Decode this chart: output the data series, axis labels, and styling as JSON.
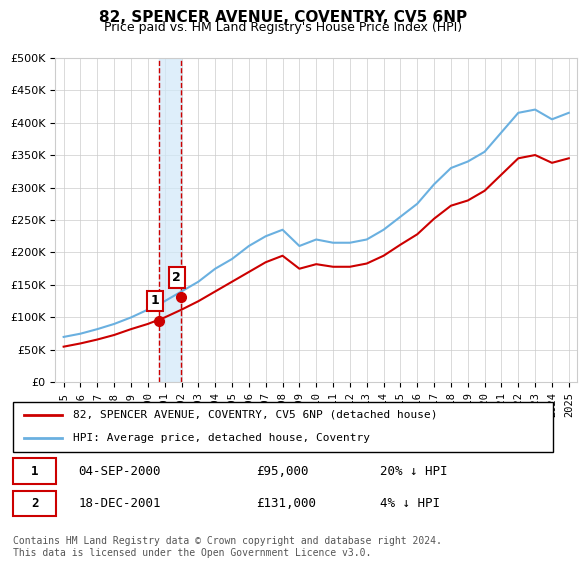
{
  "title": "82, SPENCER AVENUE, COVENTRY, CV5 6NP",
  "subtitle": "Price paid vs. HM Land Registry's House Price Index (HPI)",
  "legend_line1": "82, SPENCER AVENUE, COVENTRY, CV5 6NP (detached house)",
  "legend_line2": "HPI: Average price, detached house, Coventry",
  "transaction1_label": "1",
  "transaction1_date": "04-SEP-2000",
  "transaction1_price": "£95,000",
  "transaction1_hpi": "20% ↓ HPI",
  "transaction2_label": "2",
  "transaction2_date": "18-DEC-2001",
  "transaction2_price": "£131,000",
  "transaction2_hpi": "4% ↓ HPI",
  "footer": "Contains HM Land Registry data © Crown copyright and database right 2024.\nThis data is licensed under the Open Government Licence v3.0.",
  "hpi_color": "#6ab0e0",
  "price_color": "#cc0000",
  "marker1_color": "#cc0000",
  "marker2_color": "#cc0000",
  "vline_color": "#cc0000",
  "vshade_color": "#d0e8f8",
  "grid_color": "#cccccc",
  "bg_color": "#ffffff",
  "years": [
    1995,
    1996,
    1997,
    1998,
    1999,
    2000,
    2001,
    2002,
    2003,
    2004,
    2005,
    2006,
    2007,
    2008,
    2009,
    2010,
    2011,
    2012,
    2013,
    2014,
    2015,
    2016,
    2017,
    2018,
    2019,
    2020,
    2021,
    2022,
    2023,
    2024,
    2025
  ],
  "hpi_values": [
    70000,
    75000,
    82000,
    90000,
    100000,
    112000,
    125000,
    140000,
    155000,
    175000,
    190000,
    210000,
    225000,
    235000,
    210000,
    220000,
    215000,
    215000,
    220000,
    235000,
    255000,
    275000,
    305000,
    330000,
    340000,
    355000,
    385000,
    415000,
    420000,
    405000,
    415000
  ],
  "price_values": [
    55000,
    60000,
    66000,
    73000,
    82000,
    90000,
    100000,
    112000,
    125000,
    140000,
    155000,
    170000,
    185000,
    195000,
    175000,
    182000,
    178000,
    178000,
    183000,
    195000,
    212000,
    228000,
    252000,
    272000,
    280000,
    295000,
    320000,
    345000,
    350000,
    338000,
    345000
  ],
  "marker1_x": 2000.67,
  "marker1_y": 95000,
  "marker2_x": 2001.96,
  "marker2_y": 131000,
  "vline1_x": 2000.67,
  "vline2_x": 2001.96,
  "ylim": [
    0,
    500000
  ],
  "xlim": [
    1994.5,
    2025.5
  ]
}
